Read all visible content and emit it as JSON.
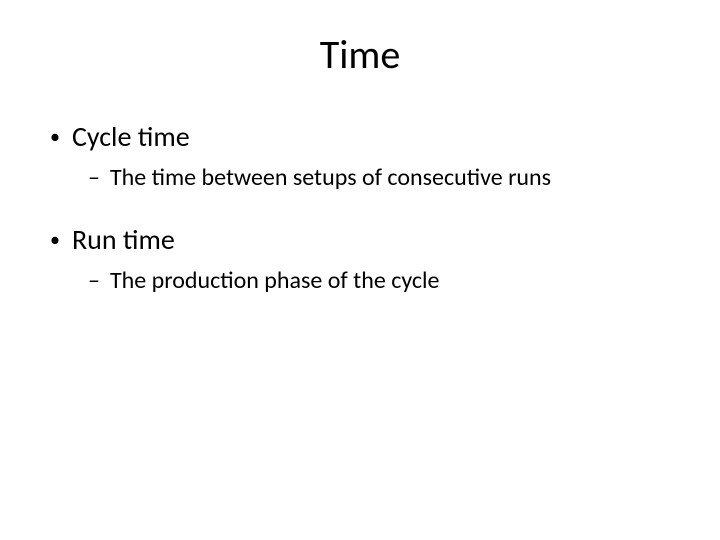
{
  "slide": {
    "title": "Time",
    "title_fontsize": 40,
    "body_fontsize_level1": 28,
    "body_fontsize_level2": 24,
    "text_color": "#000000",
    "background_color": "#ffffff",
    "font_family": "Calibri",
    "items": [
      {
        "label": "Cycle time",
        "children": [
          {
            "label": "The time between setups of consecutive runs"
          }
        ]
      },
      {
        "label": "Run time",
        "children": [
          {
            "label": "The production phase of the cycle"
          }
        ]
      }
    ]
  }
}
